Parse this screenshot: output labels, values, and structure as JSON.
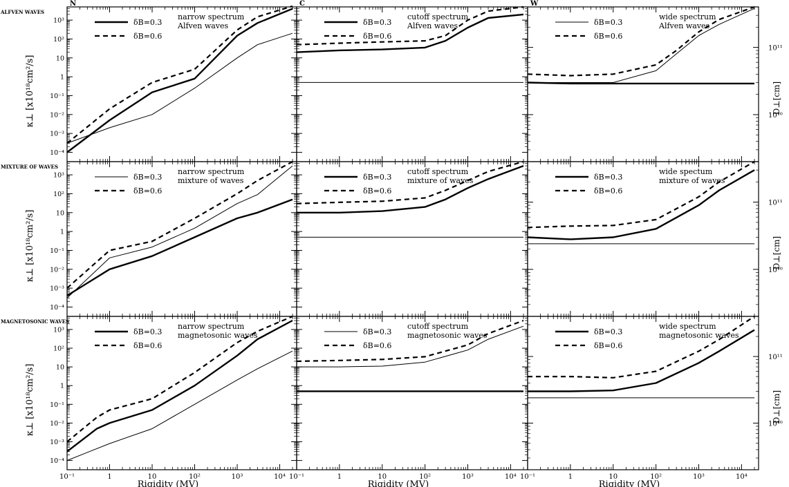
{
  "figure": {
    "column_headers": [
      "N",
      "C",
      "W"
    ],
    "row_headers": [
      "ALFVEN WAVES",
      "MIXTURE OF WAVES",
      "MAGNETOSONIC WAVES"
    ],
    "x_axis_label": "Rigidity (MV)",
    "y_axis_label_left": "κ⊥ [x10¹⁸cm²/s]",
    "y_axis_label_right": "D⊥[cm]"
  },
  "chart_data": [
    {
      "type": "line",
      "row": 0,
      "col": 0,
      "title": "",
      "annotation": [
        "narrow spectrum",
        "Alfven waves"
      ],
      "xscale": "log",
      "yscale": "log",
      "xlim": [
        0.1,
        25000
      ],
      "ylim": [
        3.2e-05,
        5000
      ],
      "ylabel": "κ⊥ [x10¹⁸cm²/s]",
      "xlabel": "",
      "legend": "top-left",
      "series": [
        {
          "name": "δB=0.3",
          "style": "thick",
          "x": [
            0.1,
            1,
            10,
            100,
            1000,
            3000,
            20000
          ],
          "y": [
            0.0001,
            0.005,
            0.15,
            0.8,
            150,
            700,
            4000
          ]
        },
        {
          "name": "δB=0.6",
          "style": "dashed",
          "x": [
            0.1,
            1,
            10,
            100,
            1000,
            3000,
            20000
          ],
          "y": [
            0.0003,
            0.02,
            0.5,
            2.5,
            300,
            1500,
            5500
          ]
        },
        {
          "name": "",
          "style": "thin",
          "x": [
            0.1,
            1,
            10,
            100,
            1000,
            3000,
            20000
          ],
          "y": [
            0.0003,
            0.002,
            0.01,
            0.25,
            10,
            50,
            200
          ]
        }
      ]
    },
    {
      "type": "line",
      "row": 0,
      "col": 1,
      "title": "",
      "annotation": [
        "cutoff spectrum",
        "Alfven waves"
      ],
      "xscale": "log",
      "yscale": "log",
      "xlim": [
        0.1,
        25000
      ],
      "ylim": [
        3.2e-05,
        5000
      ],
      "legend": "top-left",
      "series": [
        {
          "name": "δB=0.3",
          "style": "thick",
          "x": [
            0.1,
            1,
            10,
            100,
            300,
            1000,
            3000,
            20000
          ],
          "y": [
            20,
            25,
            28,
            35,
            80,
            400,
            1300,
            2000
          ]
        },
        {
          "name": "δB=0.6",
          "style": "dashed",
          "x": [
            0.1,
            1,
            10,
            100,
            300,
            1000,
            3000,
            20000
          ],
          "y": [
            50,
            60,
            70,
            80,
            150,
            1000,
            3000,
            5000
          ]
        },
        {
          "name": "",
          "style": "thin",
          "x": [
            0.1,
            10,
            300,
            20000
          ],
          "y": [
            0.5,
            0.5,
            0.5,
            0.5
          ]
        }
      ]
    },
    {
      "type": "line",
      "row": 0,
      "col": 2,
      "title": "",
      "annotation": [
        "wide spectrum",
        "Alfven waves"
      ],
      "xscale": "log",
      "yscale": "log",
      "xlim": [
        0.1,
        25000
      ],
      "ylim": [
        2000000000.0,
        400000000000.0
      ],
      "ylabel_right": "D⊥[cm]",
      "legend": "top-left",
      "series": [
        {
          "name": "δB=0.3",
          "style": "thin",
          "x": [
            0.1,
            1,
            10,
            100,
            300,
            1000,
            3000,
            20000
          ],
          "y": [
            30000000000.0,
            30000000000.0,
            30000000000.0,
            45000000000.0,
            80000000000.0,
            150000000000.0,
            220000000000.0,
            380000000000.0
          ]
        },
        {
          "name": "δB=0.6",
          "style": "dashed",
          "x": [
            0.1,
            1,
            10,
            100,
            300,
            1000,
            3000,
            20000
          ],
          "y": [
            40000000000.0,
            38000000000.0,
            40000000000.0,
            55000000000.0,
            90000000000.0,
            170000000000.0,
            260000000000.0,
            400000000000.0
          ]
        },
        {
          "name": "",
          "style": "thick",
          "x": [
            0.1,
            1,
            10,
            20000
          ],
          "y": [
            30000000000.0,
            29000000000.0,
            29000000000.0,
            29000000000.0
          ]
        }
      ]
    },
    {
      "type": "line",
      "row": 1,
      "col": 0,
      "title": "",
      "annotation": [
        "narrow spectrum",
        "mixture of waves"
      ],
      "xscale": "log",
      "yscale": "log",
      "xlim": [
        0.1,
        25000
      ],
      "ylim": [
        3.2e-05,
        5000
      ],
      "ylabel": "κ⊥ [x10¹⁸cm²/s]",
      "legend": "top-left",
      "series": [
        {
          "name": "δB=0.3",
          "style": "thin",
          "x": [
            0.1,
            1,
            10,
            100,
            1000,
            3000,
            20000
          ],
          "y": [
            0.0003,
            0.04,
            0.15,
            1.5,
            30,
            90,
            3000
          ]
        },
        {
          "name": "δB=0.6",
          "style": "dashed",
          "x": [
            0.1,
            1,
            10,
            100,
            1000,
            3000,
            20000
          ],
          "y": [
            0.001,
            0.1,
            0.3,
            5,
            100,
            500,
            5000
          ]
        },
        {
          "name": "",
          "style": "thick",
          "x": [
            0.1,
            1,
            10,
            100,
            1000,
            3000,
            20000
          ],
          "y": [
            0.0004,
            0.01,
            0.05,
            0.5,
            5,
            10,
            50
          ]
        }
      ]
    },
    {
      "type": "line",
      "row": 1,
      "col": 1,
      "title": "",
      "annotation": [
        "cutoff spectrum",
        "mixture of waves"
      ],
      "xscale": "log",
      "yscale": "log",
      "xlim": [
        0.1,
        25000
      ],
      "ylim": [
        3.2e-05,
        5000
      ],
      "legend": "top-left",
      "series": [
        {
          "name": "δB=0.3",
          "style": "thick",
          "x": [
            0.1,
            1,
            10,
            100,
            300,
            1000,
            3000,
            20000
          ],
          "y": [
            10,
            10,
            12,
            20,
            50,
            200,
            600,
            3000
          ]
        },
        {
          "name": "δB=0.6",
          "style": "dashed",
          "x": [
            0.1,
            1,
            10,
            100,
            300,
            1000,
            3000,
            20000
          ],
          "y": [
            30,
            35,
            40,
            60,
            150,
            500,
            1500,
            5000
          ]
        },
        {
          "name": "",
          "style": "thin",
          "x": [
            0.1,
            10,
            300,
            20000
          ],
          "y": [
            0.5,
            0.5,
            0.5,
            0.5
          ]
        }
      ]
    },
    {
      "type": "line",
      "row": 1,
      "col": 2,
      "title": "",
      "annotation": [
        "wide spectum",
        "mixture of waves"
      ],
      "xscale": "log",
      "yscale": "log",
      "xlim": [
        0.1,
        25000
      ],
      "ylim": [
        2000000000.0,
        400000000000.0
      ],
      "ylabel_right": "D⊥[cm]",
      "legend": "top-left",
      "series": [
        {
          "name": "δB=0.3",
          "style": "thick",
          "x": [
            0.1,
            1,
            10,
            100,
            1000,
            3000,
            20000
          ],
          "y": [
            30000000000.0,
            28000000000.0,
            30000000000.0,
            40000000000.0,
            90000000000.0,
            150000000000.0,
            300000000000.0
          ]
        },
        {
          "name": "δB=0.6",
          "style": "dashed",
          "x": [
            0.1,
            1,
            10,
            100,
            1000,
            3000,
            20000
          ],
          "y": [
            42000000000.0,
            44000000000.0,
            45000000000.0,
            55000000000.0,
            120000000000.0,
            200000000000.0,
            400000000000.0
          ]
        },
        {
          "name": "",
          "style": "thin",
          "x": [
            0.1,
            1,
            10,
            20000
          ],
          "y": [
            24000000000.0,
            24000000000.0,
            24000000000.0,
            24000000000.0
          ]
        }
      ]
    },
    {
      "type": "line",
      "row": 2,
      "col": 0,
      "title": "",
      "annotation": [
        "narrow spectrum",
        "magnetosonic waves"
      ],
      "xscale": "log",
      "yscale": "log",
      "xlim": [
        0.1,
        25000
      ],
      "ylim": [
        3.2e-05,
        5000
      ],
      "ylabel": "κ⊥ [x10¹⁸cm²/s]",
      "xlabel": "Rigidity (MV)",
      "legend": "top-left",
      "series": [
        {
          "name": "δB=0.3",
          "style": "thick",
          "x": [
            0.1,
            0.5,
            1,
            10,
            100,
            1000,
            3000,
            20000
          ],
          "y": [
            0.0003,
            0.005,
            0.01,
            0.05,
            1,
            40,
            300,
            3000
          ]
        },
        {
          "name": "δB=0.6",
          "style": "dashed",
          "x": [
            0.1,
            0.5,
            1,
            10,
            100,
            1000,
            3000,
            20000
          ],
          "y": [
            0.001,
            0.02,
            0.05,
            0.2,
            5,
            200,
            800,
            5000
          ]
        },
        {
          "name": "",
          "style": "thin",
          "x": [
            0.1,
            1,
            10,
            100,
            1000,
            3000,
            20000
          ],
          "y": [
            0.0001,
            0.0008,
            0.005,
            0.1,
            2,
            8,
            70
          ]
        }
      ]
    },
    {
      "type": "line",
      "row": 2,
      "col": 1,
      "title": "",
      "annotation": [
        "cutoff spectrum",
        "magnetosonic waves"
      ],
      "xscale": "log",
      "yscale": "log",
      "xlim": [
        0.1,
        25000
      ],
      "ylim": [
        3.2e-05,
        5000
      ],
      "xlabel": "Rigidity (MV)",
      "legend": "top-left",
      "series": [
        {
          "name": "δB=0.3",
          "style": "thin",
          "x": [
            0.1,
            1,
            10,
            100,
            1000,
            3000,
            20000
          ],
          "y": [
            10,
            10,
            11,
            18,
            80,
            300,
            1500
          ]
        },
        {
          "name": "δB=0.6",
          "style": "dashed",
          "x": [
            0.1,
            1,
            10,
            100,
            1000,
            3000,
            20000
          ],
          "y": [
            20,
            22,
            25,
            35,
            150,
            600,
            3000
          ]
        },
        {
          "name": "",
          "style": "thick",
          "x": [
            0.1,
            20000
          ],
          "y": [
            0.5,
            0.5
          ]
        }
      ]
    },
    {
      "type": "line",
      "row": 2,
      "col": 2,
      "title": "",
      "annotation": [
        "wide spectrum",
        "magnetosonic waves"
      ],
      "xscale": "log",
      "yscale": "log",
      "xlim": [
        0.1,
        25000
      ],
      "ylim": [
        2000000000.0,
        400000000000.0
      ],
      "ylabel_right": "D⊥[cm]",
      "xlabel": "Rigidity (MV)",
      "legend": "top-left",
      "series": [
        {
          "name": "δB=0.3",
          "style": "thick",
          "x": [
            0.1,
            1,
            10,
            100,
            1000,
            3000,
            20000
          ],
          "y": [
            30000000000.0,
            30000000000.0,
            31000000000.0,
            40000000000.0,
            80000000000.0,
            120000000000.0,
            250000000000.0
          ]
        },
        {
          "name": "δB=0.6",
          "style": "dashed",
          "x": [
            0.1,
            1,
            10,
            100,
            1000,
            3000,
            20000
          ],
          "y": [
            50000000000.0,
            50000000000.0,
            48000000000.0,
            60000000000.0,
            120000000000.0,
            180000000000.0,
            400000000000.0
          ]
        },
        {
          "name": "",
          "style": "thin",
          "x": [
            0.1,
            1,
            10,
            100,
            1000,
            20000
          ],
          "y": [
            24000000000.0,
            24000000000.0,
            24000000000.0,
            24000000000.0,
            24000000000.0,
            24000000000.0
          ]
        }
      ]
    }
  ]
}
